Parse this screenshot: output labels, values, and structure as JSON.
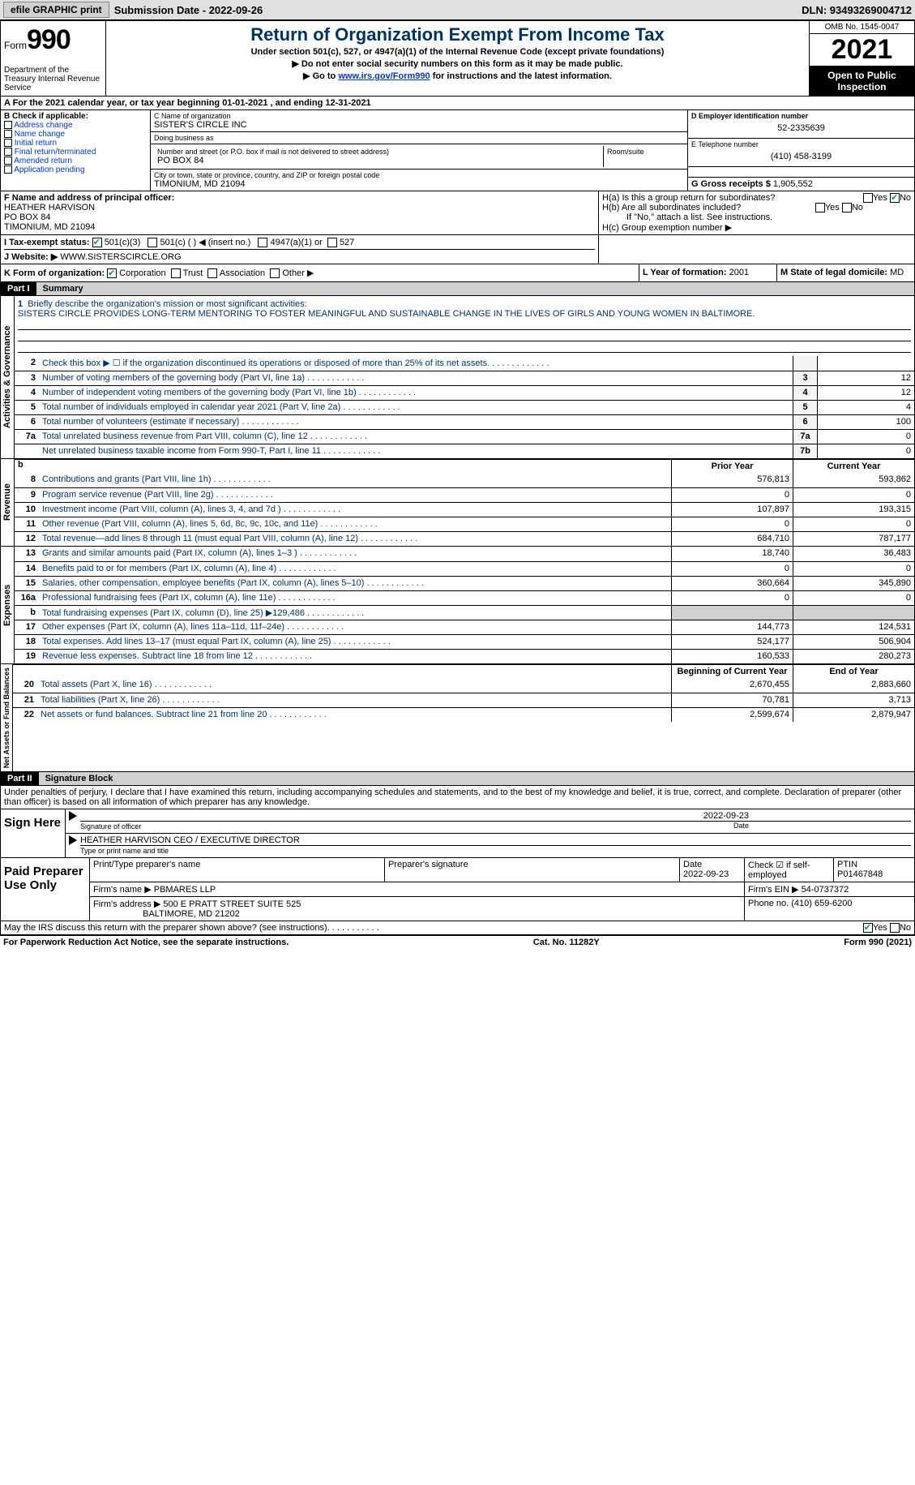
{
  "topbar": {
    "efile": "efile GRAPHIC print",
    "submission": "Submission Date - 2022-09-26",
    "dln": "DLN: 93493269004712"
  },
  "header": {
    "form_prefix": "Form",
    "form_num": "990",
    "title": "Return of Organization Exempt From Income Tax",
    "subtitle": "Under section 501(c), 527, or 4947(a)(1) of the Internal Revenue Code (except private foundations)",
    "line1": "▶ Do not enter social security numbers on this form as it may be made public.",
    "line2_pre": "▶ Go to ",
    "line2_link": "www.irs.gov/Form990",
    "line2_post": " for instructions and the latest information.",
    "dept": "Department of the Treasury Internal Revenue Service",
    "omb": "OMB No. 1545-0047",
    "year": "2021",
    "inspect": "Open to Public Inspection"
  },
  "row_a": "A For the 2021 calendar year, or tax year beginning 01-01-2021   , and ending 12-31-2021",
  "col_b": {
    "label": "B Check if applicable:",
    "opts": [
      "Address change",
      "Name change",
      "Initial return",
      "Final return/terminated",
      "Amended return",
      "Application pending"
    ]
  },
  "col_c": {
    "name_lbl": "C Name of organization",
    "name": "SISTER'S CIRCLE INC",
    "dba_lbl": "Doing business as",
    "dba": "",
    "addr_lbl": "Number and street (or P.O. box if mail is not delivered to street address)",
    "room_lbl": "Room/suite",
    "addr": "PO BOX 84",
    "city_lbl": "City or town, state or province, country, and ZIP or foreign postal code",
    "city": "TIMONIUM, MD  21094"
  },
  "col_d": {
    "ein_lbl": "D Employer identification number",
    "ein": "52-2335639",
    "tel_lbl": "E Telephone number",
    "tel": "(410) 458-3199",
    "gross_lbl": "G Gross receipts $",
    "gross": "1,905,552"
  },
  "row_f": {
    "lbl": "F Name and address of principal officer:",
    "name": "HEATHER HARVISON",
    "addr1": "PO BOX 84",
    "addr2": "TIMONIUM, MD  21094"
  },
  "row_h": {
    "ha": "H(a)  Is this a group return for subordinates?",
    "hb": "H(b)  Are all subordinates included?",
    "hb_note": "If \"No,\" attach a list. See instructions.",
    "hc": "H(c)  Group exemption number ▶"
  },
  "row_i": {
    "lbl": "I  Tax-exempt status:",
    "o1": "501(c)(3)",
    "o2": "501(c) (  ) ◀ (insert no.)",
    "o3": "4947(a)(1) or",
    "o4": "527"
  },
  "row_j": {
    "lbl": "J  Website: ▶",
    "val": "WWW.SISTERSCIRCLE.ORG"
  },
  "row_k": {
    "lbl": "K Form of organization:",
    "o1": "Corporation",
    "o2": "Trust",
    "o3": "Association",
    "o4": "Other ▶",
    "l_lbl": "L Year of formation:",
    "l_val": "2001",
    "m_lbl": "M State of legal domicile:",
    "m_val": "MD"
  },
  "part1": {
    "num": "Part I",
    "title": "Summary"
  },
  "mission": {
    "num": "1",
    "lbl": "Briefly describe the organization's mission or most significant activities:",
    "text": "SISTERS CIRCLE PROVIDES LONG-TERM MENTORING TO FOSTER MEANINGFUL AND SUSTAINABLE CHANGE IN THE LIVES OF GIRLS AND YOUNG WOMEN IN BALTIMORE."
  },
  "gov_lines": [
    {
      "n": "2",
      "d": "Check this box ▶ ☐ if the organization discontinued its operations or disposed of more than 25% of its net assets.",
      "b": "",
      "v": ""
    },
    {
      "n": "3",
      "d": "Number of voting members of the governing body (Part VI, line 1a)",
      "b": "3",
      "v": "12"
    },
    {
      "n": "4",
      "d": "Number of independent voting members of the governing body (Part VI, line 1b)",
      "b": "4",
      "v": "12"
    },
    {
      "n": "5",
      "d": "Total number of individuals employed in calendar year 2021 (Part V, line 2a)",
      "b": "5",
      "v": "4"
    },
    {
      "n": "6",
      "d": "Total number of volunteers (estimate if necessary)",
      "b": "6",
      "v": "100"
    },
    {
      "n": "7a",
      "d": "Total unrelated business revenue from Part VIII, column (C), line 12",
      "b": "7a",
      "v": "0"
    },
    {
      "n": "",
      "d": "Net unrelated business taxable income from Form 990-T, Part I, line 11",
      "b": "7b",
      "v": "0"
    }
  ],
  "vlabels": {
    "gov": "Activities & Governance",
    "rev": "Revenue",
    "exp": "Expenses",
    "net": "Net Assets or Fund Balances"
  },
  "col_hdrs": {
    "prior": "Prior Year",
    "current": "Current Year",
    "begin": "Beginning of Current Year",
    "end": "End of Year"
  },
  "rev_lines": [
    {
      "n": "8",
      "d": "Contributions and grants (Part VIII, line 1h)",
      "p": "576,813",
      "c": "593,862"
    },
    {
      "n": "9",
      "d": "Program service revenue (Part VIII, line 2g)",
      "p": "0",
      "c": "0"
    },
    {
      "n": "10",
      "d": "Investment income (Part VIII, column (A), lines 3, 4, and 7d )",
      "p": "107,897",
      "c": "193,315"
    },
    {
      "n": "11",
      "d": "Other revenue (Part VIII, column (A), lines 5, 6d, 8c, 9c, 10c, and 11e)",
      "p": "0",
      "c": "0"
    },
    {
      "n": "12",
      "d": "Total revenue—add lines 8 through 11 (must equal Part VIII, column (A), line 12)",
      "p": "684,710",
      "c": "787,177"
    }
  ],
  "exp_lines": [
    {
      "n": "13",
      "d": "Grants and similar amounts paid (Part IX, column (A), lines 1–3 )",
      "p": "18,740",
      "c": "36,483"
    },
    {
      "n": "14",
      "d": "Benefits paid to or for members (Part IX, column (A), line 4)",
      "p": "0",
      "c": "0"
    },
    {
      "n": "15",
      "d": "Salaries, other compensation, employee benefits (Part IX, column (A), lines 5–10)",
      "p": "360,664",
      "c": "345,890"
    },
    {
      "n": "16a",
      "d": "Professional fundraising fees (Part IX, column (A), line 11e)",
      "p": "0",
      "c": "0"
    },
    {
      "n": "b",
      "d": "Total fundraising expenses (Part IX, column (D), line 25) ▶129,486",
      "p": "",
      "c": "",
      "grey": true
    },
    {
      "n": "17",
      "d": "Other expenses (Part IX, column (A), lines 11a–11d, 11f–24e)",
      "p": "144,773",
      "c": "124,531"
    },
    {
      "n": "18",
      "d": "Total expenses. Add lines 13–17 (must equal Part IX, column (A), line 25)",
      "p": "524,177",
      "c": "506,904"
    },
    {
      "n": "19",
      "d": "Revenue less expenses. Subtract line 18 from line 12",
      "p": "160,533",
      "c": "280,273"
    }
  ],
  "net_lines": [
    {
      "n": "20",
      "d": "Total assets (Part X, line 16)",
      "p": "2,670,455",
      "c": "2,883,660"
    },
    {
      "n": "21",
      "d": "Total liabilities (Part X, line 26)",
      "p": "70,781",
      "c": "3,713"
    },
    {
      "n": "22",
      "d": "Net assets or fund balances. Subtract line 21 from line 20",
      "p": "2,599,674",
      "c": "2,879,947"
    }
  ],
  "part2": {
    "num": "Part II",
    "title": "Signature Block"
  },
  "penalties": "Under penalties of perjury, I declare that I have examined this return, including accompanying schedules and statements, and to the best of my knowledge and belief, it is true, correct, and complete. Declaration of preparer (other than officer) is based on all information of which preparer has any knowledge.",
  "sign": {
    "here": "Sign Here",
    "sig_lbl": "Signature of officer",
    "date": "2022-09-23",
    "date_lbl": "Date",
    "name": "HEATHER HARVISON  CEO / EXECUTIVE DIRECTOR",
    "name_lbl": "Type or print name and title"
  },
  "prep": {
    "label": "Paid Preparer Use Only",
    "r1": {
      "c1": "Print/Type preparer's name",
      "c2": "Preparer's signature",
      "c3": "Date",
      "c3v": "2022-09-23",
      "c4": "Check ☑ if self-employed",
      "c5": "PTIN",
      "c5v": "P01467848"
    },
    "r2": {
      "lbl": "Firm's name    ▶",
      "val": "PBMARES LLP",
      "ein_lbl": "Firm's EIN ▶",
      "ein": "54-0737372"
    },
    "r3": {
      "lbl": "Firm's address ▶",
      "val1": "500 E PRATT STREET SUITE 525",
      "val2": "BALTIMORE, MD  21202",
      "ph_lbl": "Phone no.",
      "ph": "(410) 659-6200"
    }
  },
  "may_irs": "May the IRS discuss this return with the preparer shown above? (see instructions)",
  "footer": {
    "left": "For Paperwork Reduction Act Notice, see the separate instructions.",
    "mid": "Cat. No. 11282Y",
    "right": "Form 990 (2021)"
  }
}
